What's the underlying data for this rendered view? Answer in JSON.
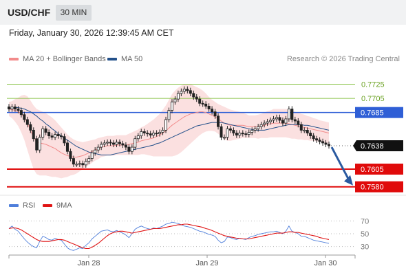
{
  "header": {
    "symbol": "USD/CHF",
    "period": "30 MIN"
  },
  "datetime": "Friday, January 30, 2026 12:39:45 AM CET",
  "legend": {
    "items": [
      {
        "label": "MA 20 + Bollinger Bands",
        "color": "#f28b8b"
      },
      {
        "label": "MA 50",
        "color": "#23508a"
      }
    ],
    "research": "Research © 2026 Trading Central"
  },
  "rsi_legend": {
    "items": [
      {
        "label": "RSI",
        "color": "#4f7fdb"
      },
      {
        "label": "9MA",
        "color": "#e01414"
      }
    ]
  },
  "colors": {
    "resistance": "#8bc34a",
    "pivot": "#2f5fd6",
    "support": "#e00b0b",
    "ma20": "#f28b8b",
    "ma50": "#23508a",
    "band": "#fbe0e0",
    "candle": "#222222",
    "arrow": "#2a5aa0"
  },
  "chart_data": [
    {
      "type": "candlestick",
      "y_range": [
        0.757,
        0.7742
      ],
      "x_ticks": [
        "Jan 28",
        "Jan 29",
        "Jan 30"
      ],
      "last_price": "0.7638",
      "levels": [
        {
          "value": 0.7725,
          "label": "0.7725",
          "kind": "resistance"
        },
        {
          "value": 0.7705,
          "label": "0.7705",
          "kind": "resistance"
        },
        {
          "value": 0.7685,
          "label": "0.7685",
          "kind": "pivot"
        },
        {
          "value": 0.7605,
          "label": "0.7605",
          "kind": "support"
        },
        {
          "value": 0.758,
          "label": "0.7580",
          "kind": "support"
        }
      ],
      "closes": [
        0.769,
        0.7693,
        0.769,
        0.7688,
        0.7682,
        0.7675,
        0.7668,
        0.766,
        0.7648,
        0.7632,
        0.765,
        0.7662,
        0.7657,
        0.7652,
        0.765,
        0.7654,
        0.7652,
        0.7651,
        0.7642,
        0.763,
        0.762,
        0.7612,
        0.7612,
        0.7613,
        0.7611,
        0.7616,
        0.762,
        0.7628,
        0.7632,
        0.7636,
        0.764,
        0.7642,
        0.7643,
        0.7642,
        0.764,
        0.7643,
        0.7641,
        0.7639,
        0.7636,
        0.763,
        0.7636,
        0.7648,
        0.7652,
        0.7658,
        0.7656,
        0.7655,
        0.7653,
        0.7656,
        0.7655,
        0.7657,
        0.766,
        0.7675,
        0.7688,
        0.77,
        0.7704,
        0.7712,
        0.7715,
        0.7718,
        0.7716,
        0.7712,
        0.7707,
        0.7704,
        0.7698,
        0.7697,
        0.7694,
        0.769,
        0.7686,
        0.768,
        0.7665,
        0.765,
        0.765,
        0.7662,
        0.766,
        0.7656,
        0.7653,
        0.7656,
        0.7655,
        0.7654,
        0.7657,
        0.766,
        0.7662,
        0.7665,
        0.7668,
        0.767,
        0.7672,
        0.7674,
        0.7676,
        0.7678,
        0.7674,
        0.767,
        0.7676,
        0.769,
        0.7675,
        0.7673,
        0.7668,
        0.766,
        0.766,
        0.7656,
        0.7652,
        0.7648,
        0.7646,
        0.7644,
        0.7642,
        0.764,
        0.7638
      ],
      "ma20": [
        0.769,
        0.7689,
        0.7688,
        0.7686,
        0.7683,
        0.7678,
        0.767,
        0.766,
        0.765,
        0.7644,
        0.7642,
        0.7641,
        0.764,
        0.7638,
        0.7636,
        0.7634,
        0.7631,
        0.7628,
        0.7626,
        0.7624,
        0.7623,
        0.7622,
        0.7622,
        0.7623,
        0.7624,
        0.7626,
        0.7628,
        0.763,
        0.7632,
        0.7634,
        0.7636,
        0.7637,
        0.7638,
        0.7638,
        0.7638,
        0.7639,
        0.7639,
        0.7639,
        0.7639,
        0.764,
        0.7641,
        0.7642,
        0.7643,
        0.7645,
        0.7646,
        0.7647,
        0.7648,
        0.7649,
        0.7651,
        0.7653,
        0.7656,
        0.7659,
        0.7663,
        0.7667,
        0.767,
        0.7673,
        0.7676,
        0.7679,
        0.7681,
        0.7683,
        0.7684,
        0.7685,
        0.7686,
        0.7686,
        0.7685,
        0.7683,
        0.7681,
        0.7679,
        0.7676,
        0.7673,
        0.767,
        0.7668,
        0.7667,
        0.7667,
        0.7667,
        0.7667,
        0.7667,
        0.7666,
        0.7665,
        0.7665,
        0.7665,
        0.7665,
        0.7666,
        0.7667,
        0.7668,
        0.7669,
        0.767,
        0.767,
        0.767,
        0.767,
        0.767,
        0.7669,
        0.7668,
        0.7667,
        0.7666,
        0.7665,
        0.7664,
        0.7663,
        0.7662,
        0.7661,
        0.766,
        0.7659,
        0.7658,
        0.7657,
        0.7656
      ],
      "ma50": [
        0.769,
        0.7691,
        0.7692,
        0.7692,
        0.7691,
        0.769,
        0.7688,
        0.7686,
        0.7683,
        0.768,
        0.7676,
        0.7673,
        0.7669,
        0.7666,
        0.7662,
        0.7659,
        0.7655,
        0.7652,
        0.7649,
        0.7646,
        0.7643,
        0.764,
        0.7637,
        0.7635,
        0.7633,
        0.7631,
        0.7629,
        0.7628,
        0.7627,
        0.7626,
        0.7625,
        0.7625,
        0.7625,
        0.7625,
        0.7626,
        0.7627,
        0.7628,
        0.7629,
        0.763,
        0.7631,
        0.7632,
        0.7633,
        0.7634,
        0.7635,
        0.7636,
        0.7637,
        0.7638,
        0.7639,
        0.7641,
        0.7642,
        0.7644,
        0.7646,
        0.7648,
        0.765,
        0.7652,
        0.7654,
        0.7656,
        0.7658,
        0.766,
        0.7662,
        0.7664,
        0.7666,
        0.7667,
        0.7668,
        0.7669,
        0.767,
        0.7671,
        0.7671,
        0.7671,
        0.7671,
        0.767,
        0.7669,
        0.7668,
        0.7667,
        0.7666,
        0.7665,
        0.7664,
        0.7663,
        0.7662,
        0.7661,
        0.766,
        0.766,
        0.766,
        0.766,
        0.7661,
        0.7662,
        0.7663,
        0.7664,
        0.7665,
        0.7666,
        0.7667,
        0.7668,
        0.7668,
        0.7668,
        0.7668,
        0.7668,
        0.7667,
        0.7667,
        0.7666,
        0.7665,
        0.7664,
        0.7663,
        0.7662,
        0.7661,
        0.766
      ],
      "band_width": [
        0.001,
        0.0012,
        0.0016,
        0.002,
        0.0026,
        0.0032,
        0.0038,
        0.0042,
        0.0045,
        0.0046,
        0.0046,
        0.0045,
        0.0044,
        0.0043,
        0.0042,
        0.004,
        0.0038,
        0.0036,
        0.0033,
        0.003,
        0.0027,
        0.0025,
        0.0023,
        0.0021,
        0.0019,
        0.0018,
        0.0017,
        0.0016,
        0.0015,
        0.0015,
        0.0014,
        0.0014,
        0.0014,
        0.0014,
        0.0014,
        0.0014,
        0.0014,
        0.0014,
        0.0014,
        0.0015,
        0.0016,
        0.0017,
        0.0018,
        0.0019,
        0.002,
        0.0022,
        0.0024,
        0.0026,
        0.0028,
        0.003,
        0.0033,
        0.0036,
        0.004,
        0.0044,
        0.0046,
        0.0047,
        0.0047,
        0.0046,
        0.0044,
        0.0042,
        0.0039,
        0.0036,
        0.0033,
        0.003,
        0.0027,
        0.0024,
        0.0022,
        0.0021,
        0.0021,
        0.0022,
        0.0023,
        0.0023,
        0.0022,
        0.0021,
        0.002,
        0.0019,
        0.0018,
        0.0017,
        0.0016,
        0.0016,
        0.0016,
        0.0017,
        0.0017,
        0.0018,
        0.0019,
        0.0019,
        0.002,
        0.002,
        0.002,
        0.002,
        0.002,
        0.002,
        0.002,
        0.0019,
        0.0019,
        0.0018,
        0.0018,
        0.0017,
        0.0017,
        0.0016,
        0.0016,
        0.0015,
        0.0015,
        0.0015,
        0.0015
      ],
      "forecast_from": 0.7638,
      "forecast_to": 0.758
    },
    {
      "type": "line",
      "y_range": [
        20,
        80
      ],
      "y_ticks": [
        70,
        50,
        30
      ],
      "series": [
        {
          "name": "RSI",
          "color": "#4f7fdb",
          "values": [
            58,
            62,
            57,
            54,
            48,
            42,
            37,
            33,
            30,
            28,
            38,
            46,
            44,
            41,
            40,
            43,
            41,
            40,
            34,
            28,
            25,
            24,
            26,
            28,
            27,
            32,
            36,
            42,
            46,
            50,
            54,
            55,
            56,
            54,
            53,
            55,
            53,
            51,
            48,
            44,
            50,
            57,
            60,
            62,
            60,
            58,
            57,
            59,
            58,
            60,
            62,
            65,
            66,
            68,
            67,
            66,
            64,
            62,
            61,
            60,
            58,
            56,
            54,
            53,
            51,
            49,
            48,
            46,
            40,
            36,
            38,
            45,
            44,
            42,
            41,
            43,
            42,
            41,
            44,
            46,
            47,
            49,
            50,
            51,
            52,
            53,
            53,
            54,
            52,
            50,
            54,
            62,
            54,
            52,
            50,
            46,
            46,
            44,
            42,
            40,
            39,
            38,
            37,
            36,
            35
          ]
        },
        {
          "name": "9MA",
          "color": "#e01414",
          "values": [
            58,
            59,
            59,
            58,
            56,
            53,
            50,
            47,
            44,
            41,
            39,
            38,
            38,
            38,
            39,
            40,
            41,
            41,
            40,
            38,
            36,
            34,
            32,
            30,
            28,
            27,
            27,
            29,
            32,
            35,
            39,
            43,
            47,
            50,
            52,
            53,
            54,
            54,
            53,
            52,
            51,
            52,
            53,
            54,
            55,
            56,
            57,
            58,
            58,
            58,
            59,
            60,
            61,
            62,
            63,
            64,
            64,
            65,
            65,
            64,
            63,
            62,
            61,
            60,
            58,
            57,
            55,
            53,
            51,
            49,
            47,
            46,
            45,
            44,
            43,
            43,
            42,
            42,
            42,
            43,
            44,
            45,
            46,
            47,
            48,
            49,
            50,
            51,
            51,
            51,
            52,
            53,
            53,
            52,
            52,
            51,
            50,
            49,
            48,
            47,
            46,
            44,
            43,
            42,
            41
          ]
        }
      ]
    }
  ]
}
